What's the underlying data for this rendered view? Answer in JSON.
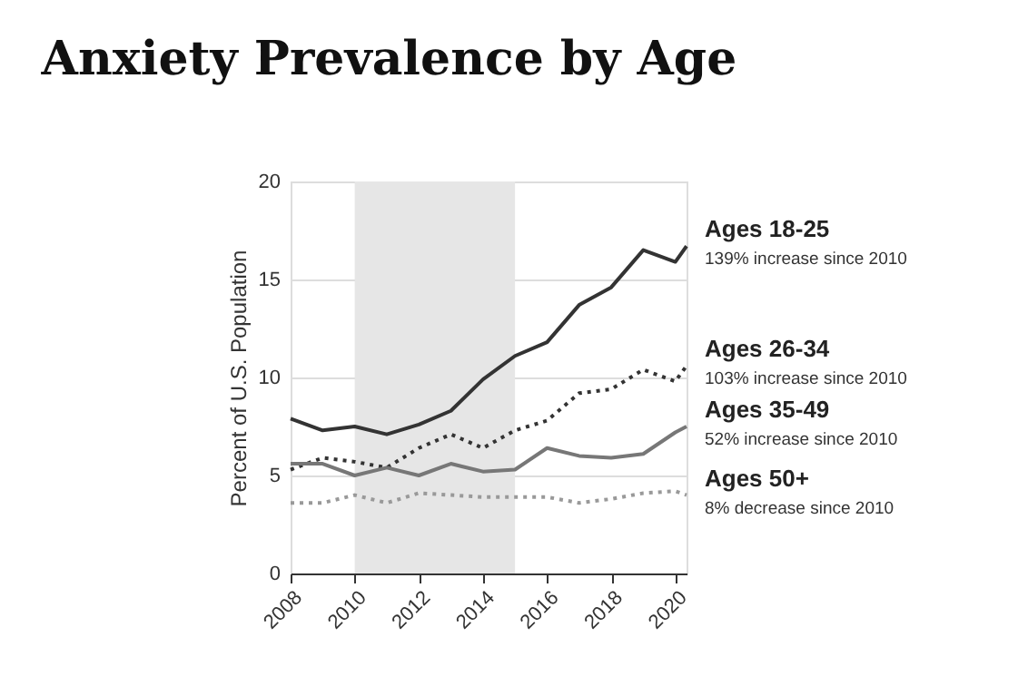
{
  "chart_data": {
    "type": "line",
    "title": "Anxiety Prevalence by Age",
    "ylabel": "Percent of U.S. Population",
    "x": [
      2008,
      2009,
      2010,
      2011,
      2012,
      2013,
      2014,
      2015,
      2016,
      2017,
      2018,
      2019,
      2020,
      2020.35
    ],
    "series": [
      {
        "name": "Ages 18-25",
        "color": "#333333",
        "line_style": "solid",
        "values": [
          7.9,
          7.3,
          7.5,
          7.1,
          7.6,
          8.3,
          9.9,
          11.1,
          11.8,
          13.7,
          14.6,
          16.5,
          15.9,
          16.7
        ]
      },
      {
        "name": "Ages 26-34",
        "color": "#333333",
        "line_style": "dotted",
        "values": [
          5.3,
          5.9,
          5.7,
          5.4,
          6.4,
          7.1,
          6.4,
          7.3,
          7.8,
          9.2,
          9.4,
          10.4,
          9.8,
          10.6
        ]
      },
      {
        "name": "Ages 35-49",
        "color": "#777777",
        "line_style": "solid",
        "values": [
          5.6,
          5.6,
          5.0,
          5.4,
          5.0,
          5.6,
          5.2,
          5.3,
          6.4,
          6.0,
          5.9,
          6.1,
          7.2,
          7.5
        ]
      },
      {
        "name": "Ages 50+",
        "color": "#999999",
        "line_style": "dotted",
        "values": [
          3.6,
          3.6,
          4.0,
          3.6,
          4.1,
          4.0,
          3.9,
          3.9,
          3.9,
          3.6,
          3.8,
          4.1,
          4.2,
          4.0
        ]
      }
    ],
    "annotations": [
      "139% increase since 2010",
      "103% increase since 2010",
      "52% increase since 2010",
      "8% decrease since 2010"
    ],
    "bands": [
      {
        "axis": "x",
        "from": 2010,
        "to": 2015,
        "color": "#e6e6e6"
      }
    ],
    "xlim": [
      2008,
      2020.35
    ],
    "xticks": [
      2008,
      2010,
      2012,
      2014,
      2016,
      2018,
      2020
    ],
    "ylim": [
      0,
      20
    ],
    "yticks": [
      0,
      5,
      10,
      15,
      20
    ],
    "grid": "y",
    "marker": "none"
  }
}
